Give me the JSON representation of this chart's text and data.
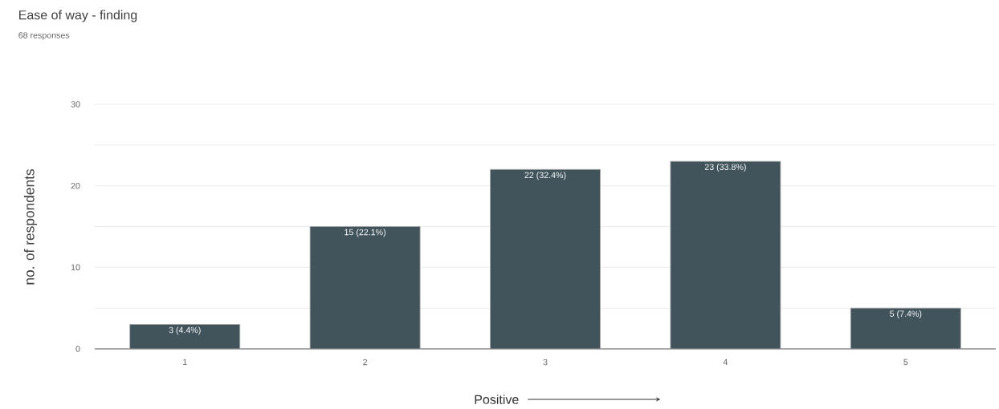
{
  "chart_data": {
    "type": "bar",
    "title": "Ease of way - finding",
    "subtitle": "68 responses",
    "xlabel": "Positive",
    "ylabel": "no. of respondents",
    "categories": [
      "1",
      "2",
      "3",
      "4",
      "5"
    ],
    "values": [
      3,
      15,
      22,
      23,
      5
    ],
    "value_labels": [
      "3 (4.4%)",
      "15 (22.1%)",
      "22 (32.4%)",
      "23 (33.8%)",
      "5 (7.4%)"
    ],
    "color": "#41535b",
    "ylim": [
      0,
      30
    ],
    "yticks": [
      0,
      {
        "value": 5,
        "label": null
      },
      10,
      {
        "value": 15,
        "label": null
      },
      20,
      {
        "value": 25,
        "label": null
      },
      30
    ],
    "grid": "y",
    "legend": false
  }
}
